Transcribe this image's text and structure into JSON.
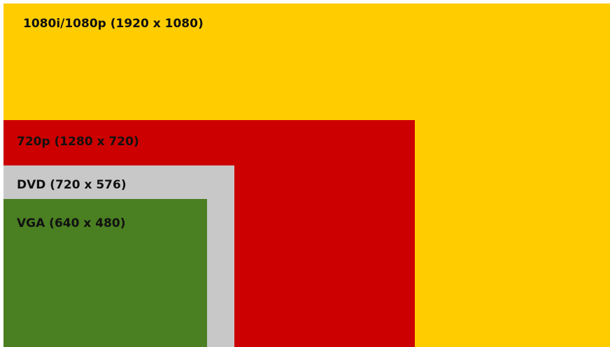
{
  "nodes": [
    {
      "label": "1080i/1080p (1920 x 1080)"
    },
    {
      "label": "720p (1280 x 720)"
    },
    {
      "label": "DVD (720 x 576)"
    },
    {
      "label": "VGA (640 x 480)"
    }
  ]
}
